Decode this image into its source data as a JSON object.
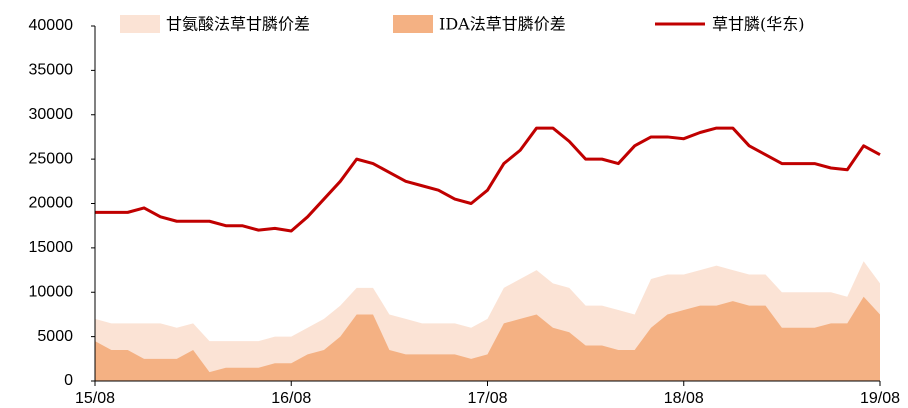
{
  "chart_data": {
    "type": "line",
    "categories": [
      "15/08",
      null,
      null,
      null,
      null,
      null,
      null,
      null,
      null,
      null,
      null,
      null,
      "16/08",
      null,
      null,
      null,
      null,
      null,
      null,
      null,
      null,
      null,
      null,
      null,
      "17/08",
      null,
      null,
      null,
      null,
      null,
      null,
      null,
      null,
      null,
      null,
      null,
      "18/08",
      null,
      null,
      null,
      null,
      null,
      null,
      null,
      null,
      null,
      null,
      null,
      "19/08"
    ],
    "series": [
      {
        "name": "甘氨酸法草甘膦价差",
        "kind": "area",
        "color": "#fbe3d5",
        "values": [
          7000,
          6500,
          6500,
          6500,
          6500,
          6000,
          6500,
          4500,
          4500,
          4500,
          4500,
          5000,
          5000,
          6000,
          7000,
          8500,
          10500,
          10500,
          7500,
          7000,
          6500,
          6500,
          6500,
          6000,
          7000,
          10500,
          11500,
          12500,
          11000,
          10500,
          8500,
          8500,
          8000,
          7500,
          11500,
          12000,
          12000,
          12500,
          13000,
          12500,
          12000,
          12000,
          10000,
          10000,
          10000,
          10000,
          9500,
          13500,
          11000
        ]
      },
      {
        "name": "IDA法草甘膦价差",
        "kind": "area",
        "color": "#f4b183",
        "values": [
          4500,
          3500,
          3500,
          2500,
          2500,
          2500,
          3500,
          1000,
          1500,
          1500,
          1500,
          2000,
          2000,
          3000,
          3500,
          5000,
          7500,
          7500,
          3500,
          3000,
          3000,
          3000,
          3000,
          2500,
          3000,
          6500,
          7000,
          7500,
          6000,
          5500,
          4000,
          4000,
          3500,
          3500,
          6000,
          7500,
          8000,
          8500,
          8500,
          9000,
          8500,
          8500,
          6000,
          6000,
          6000,
          6500,
          6500,
          9500,
          7500
        ]
      },
      {
        "name": "草甘膦(华东)",
        "kind": "line",
        "color": "#c00000",
        "values": [
          19000,
          19000,
          19000,
          19500,
          18500,
          18000,
          18000,
          18000,
          17500,
          17500,
          17000,
          17200,
          16900,
          18500,
          20500,
          22500,
          25000,
          24500,
          23500,
          22500,
          22000,
          21500,
          20500,
          20000,
          21500,
          24500,
          26000,
          28500,
          28500,
          27000,
          25000,
          25000,
          24500,
          26500,
          27500,
          27500,
          27300,
          28000,
          28500,
          28500,
          26500,
          25500,
          24500,
          24500,
          24500,
          24000,
          23800,
          26500,
          25500
        ]
      }
    ],
    "ylim": [
      0,
      40000
    ],
    "yticks": [
      0,
      5000,
      10000,
      15000,
      20000,
      25000,
      30000,
      35000,
      40000
    ],
    "grid": false
  }
}
